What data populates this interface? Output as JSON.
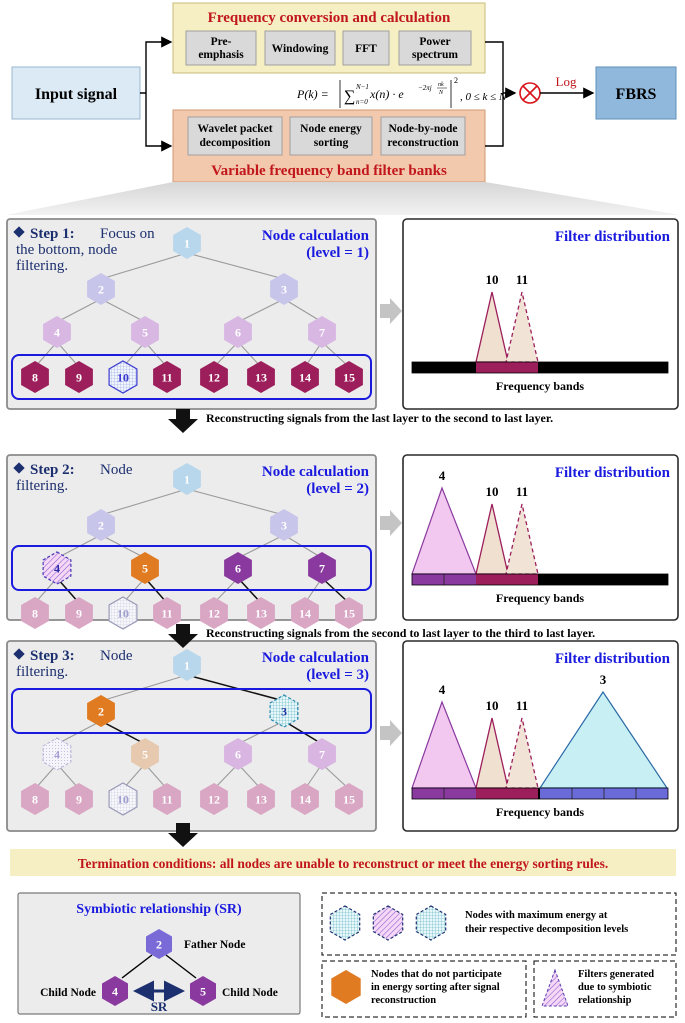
{
  "top": {
    "input_label": "Input signal",
    "output_label": "FBRS",
    "log_label": "Log",
    "fc_title": "Frequency conversion and calculation",
    "fc_boxes": [
      [
        "Pre-",
        "emphasis"
      ],
      [
        "Windowing"
      ],
      [
        "FFT"
      ],
      [
        "Power",
        "spectrum"
      ]
    ],
    "formula_lhs": "P(k) =",
    "formula_sum": "∑",
    "formula_sum_upper": "N−1",
    "formula_sum_lower": "n=0",
    "formula_body": "x(n) · e",
    "formula_exp": "−2πj",
    "formula_exp_frac_num": "nk",
    "formula_exp_frac_den": "N",
    "formula_sq": "2",
    "formula_range": ", 0 ≤ k ≤ N",
    "vf_title": "Variable frequency band filter banks",
    "vf_boxes": [
      [
        "Wavelet packet",
        "decomposition"
      ],
      [
        "Node energy",
        "sorting"
      ],
      [
        "Node-by-node",
        "reconstruction"
      ]
    ]
  },
  "steps": [
    {
      "title_bold": "Step 1:",
      "title_rest": [
        "Focus on",
        "the bottom, node",
        "filtering."
      ],
      "calc": [
        "Node calculation",
        "(level = 1)"
      ],
      "filters": [
        {
          "label": "10",
          "style": "solid"
        },
        {
          "label": "11",
          "style": "dashed"
        }
      ]
    },
    {
      "title_bold": "Step 2:",
      "title_rest": [
        "Node",
        "filtering."
      ],
      "calc": [
        "Node calculation",
        "(level = 2)"
      ],
      "filters": [
        {
          "label": "4",
          "style": "hatch"
        },
        {
          "label": "10",
          "style": "solid"
        },
        {
          "label": "11",
          "style": "dashed"
        }
      ]
    },
    {
      "title_bold": "Step 3:",
      "title_rest": [
        "Node",
        "filtering."
      ],
      "calc": [
        "Node calculation",
        "(level = 3)"
      ],
      "filters": [
        {
          "label": "4",
          "style": "hatch"
        },
        {
          "label": "10",
          "style": "solid"
        },
        {
          "label": "11",
          "style": "dashed"
        },
        {
          "label": "3",
          "style": "cyan"
        }
      ]
    }
  ],
  "node_labels": [
    "1",
    "2",
    "3",
    "4",
    "5",
    "6",
    "7",
    "8",
    "9",
    "10",
    "11",
    "12",
    "13",
    "14",
    "15"
  ],
  "filter_title": "Filter distribution",
  "freq_bands_label": "Frequency bands",
  "transitions": [
    "Reconstructing signals from the last layer to the second to last layer.",
    "Reconstructing signals from the second to last layer to the third to last layer."
  ],
  "termination": "Termination conditions: all nodes are unable to reconstruct or meet the energy sorting rules.",
  "legend": {
    "sr_title": "Symbiotic relationship (SR)",
    "father_node": "Father Node",
    "child_node": "Child Node",
    "sr_label": "SR",
    "sr_nodes": [
      "2",
      "4",
      "5"
    ],
    "max_energy": [
      "Nodes with maximum energy at",
      "their respective decomposition levels"
    ],
    "no_participate": [
      "Nodes that do not participate",
      "in energy sorting after signal",
      "reconstruction"
    ],
    "symbiotic_filter": [
      "Filters generated",
      "due to symbiotic",
      "relationship"
    ]
  },
  "colors": {
    "input_bg": "#dbeaf5",
    "fbrs_bg": "#8fb8dc",
    "fc_bg": "#f6efc4",
    "vf_bg": "#f3c9ad",
    "title_red": "#c0161c",
    "blue_text": "#1a1adf",
    "magenta_dark": "#9c1f5c",
    "purple": "#8a3a9f",
    "orange": "#e07b22",
    "node1": "#b9d7ec",
    "node2": "#c8c5ea"
  }
}
